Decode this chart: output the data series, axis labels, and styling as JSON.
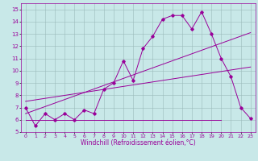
{
  "xlabel": "Windchill (Refroidissement éolien,°C)",
  "xlim": [
    -0.5,
    23.5
  ],
  "ylim": [
    5,
    15.5
  ],
  "yticks": [
    5,
    6,
    7,
    8,
    9,
    10,
    11,
    12,
    13,
    14,
    15
  ],
  "xticks": [
    0,
    1,
    2,
    3,
    4,
    5,
    6,
    7,
    8,
    9,
    10,
    11,
    12,
    13,
    14,
    15,
    16,
    17,
    18,
    19,
    20,
    21,
    22,
    23
  ],
  "background_color": "#c8e8e8",
  "grid_color": "#9bbaba",
  "line_color": "#990099",
  "line1_x": [
    0,
    1,
    2,
    3,
    4,
    5,
    6,
    7,
    8,
    9,
    10,
    11,
    12,
    13,
    14,
    15,
    16,
    17,
    18,
    19,
    20,
    21,
    22,
    23
  ],
  "line1_y": [
    7.0,
    5.5,
    6.5,
    6.0,
    6.5,
    6.0,
    6.8,
    6.5,
    8.5,
    9.0,
    10.8,
    9.2,
    11.8,
    12.8,
    14.2,
    14.5,
    14.5,
    13.4,
    14.8,
    13.0,
    11.0,
    9.5,
    7.0,
    6.1
  ],
  "line2_x": [
    0,
    23
  ],
  "line2_y": [
    6.5,
    13.1
  ],
  "line3_x": [
    0,
    23
  ],
  "line3_y": [
    7.5,
    10.3
  ],
  "line4_x": [
    0,
    20
  ],
  "line4_y": [
    6.0,
    6.0
  ],
  "tick_fontsize": 4.5,
  "xlabel_fontsize": 5.5,
  "lw": 0.7,
  "ms": 1.8
}
